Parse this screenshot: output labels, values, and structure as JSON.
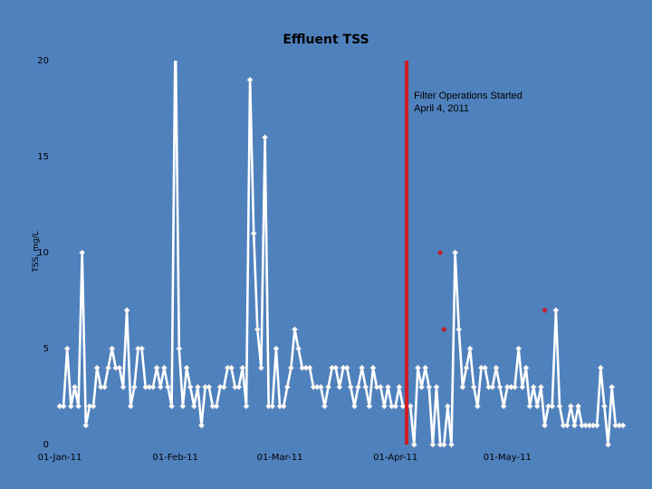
{
  "chart_data": {
    "type": "line",
    "title": "Effluent TSS",
    "ylabel": "TSS, mg/L",
    "xlabel": "",
    "ylim": [
      0,
      20
    ],
    "yticks": [
      0,
      5,
      10,
      15,
      20
    ],
    "xlim": [
      "2011-01-01",
      "2011-06-01"
    ],
    "xticks": [
      {
        "date": "2011-01-01",
        "label": "01-Jan-11"
      },
      {
        "date": "2011-02-01",
        "label": "01-Feb-11"
      },
      {
        "date": "2011-03-01",
        "label": "01-Mar-11"
      },
      {
        "date": "2011-04-01",
        "label": "01-Apr-11"
      },
      {
        "date": "2011-05-01",
        "label": "01-May-11"
      }
    ],
    "grid": false,
    "series": [
      {
        "color": "#ffffff",
        "values": [
          2,
          2,
          5,
          2,
          3,
          2,
          10,
          1,
          2,
          2,
          4,
          3,
          3,
          4,
          5,
          4,
          4,
          3,
          7,
          2,
          3,
          5,
          5,
          3,
          3,
          3,
          4,
          3,
          4,
          3,
          2,
          22,
          5,
          2,
          4,
          3,
          2,
          3,
          1,
          3,
          3,
          2,
          2,
          3,
          3,
          4,
          4,
          3,
          3,
          4,
          2,
          19,
          11,
          6,
          4,
          16,
          2,
          2,
          5,
          2,
          2,
          3,
          4,
          6,
          5,
          4,
          4,
          4,
          3,
          3,
          3,
          2,
          3,
          4,
          4,
          3,
          4,
          4,
          3,
          2,
          3,
          4,
          3,
          2,
          4,
          3,
          3,
          2,
          3,
          2,
          2,
          3,
          2,
          2,
          2,
          0,
          4,
          3,
          4,
          3,
          0,
          3,
          0,
          0,
          2,
          0,
          10,
          6,
          3,
          4,
          5,
          3,
          2,
          4,
          4,
          3,
          3,
          4,
          3,
          2,
          3,
          3,
          3,
          5,
          3,
          4,
          2,
          3,
          2,
          3,
          1,
          2,
          2,
          7,
          2,
          1,
          1,
          2,
          1,
          2,
          1,
          1,
          1,
          1,
          1,
          4,
          2,
          0,
          3,
          1,
          1,
          1
        ]
      }
    ],
    "highlighted_points": [
      {
        "date": "2011-04-13",
        "value": 10
      },
      {
        "date": "2011-04-14",
        "value": 6
      },
      {
        "date": "2011-05-11",
        "value": 7
      }
    ],
    "highlight_color": "#c0202a",
    "vertical_marker": {
      "date": "2011-04-04",
      "color": "#d01c24",
      "label_lines": [
        "Filter Operations Started",
        "April 4, 2011"
      ]
    }
  }
}
